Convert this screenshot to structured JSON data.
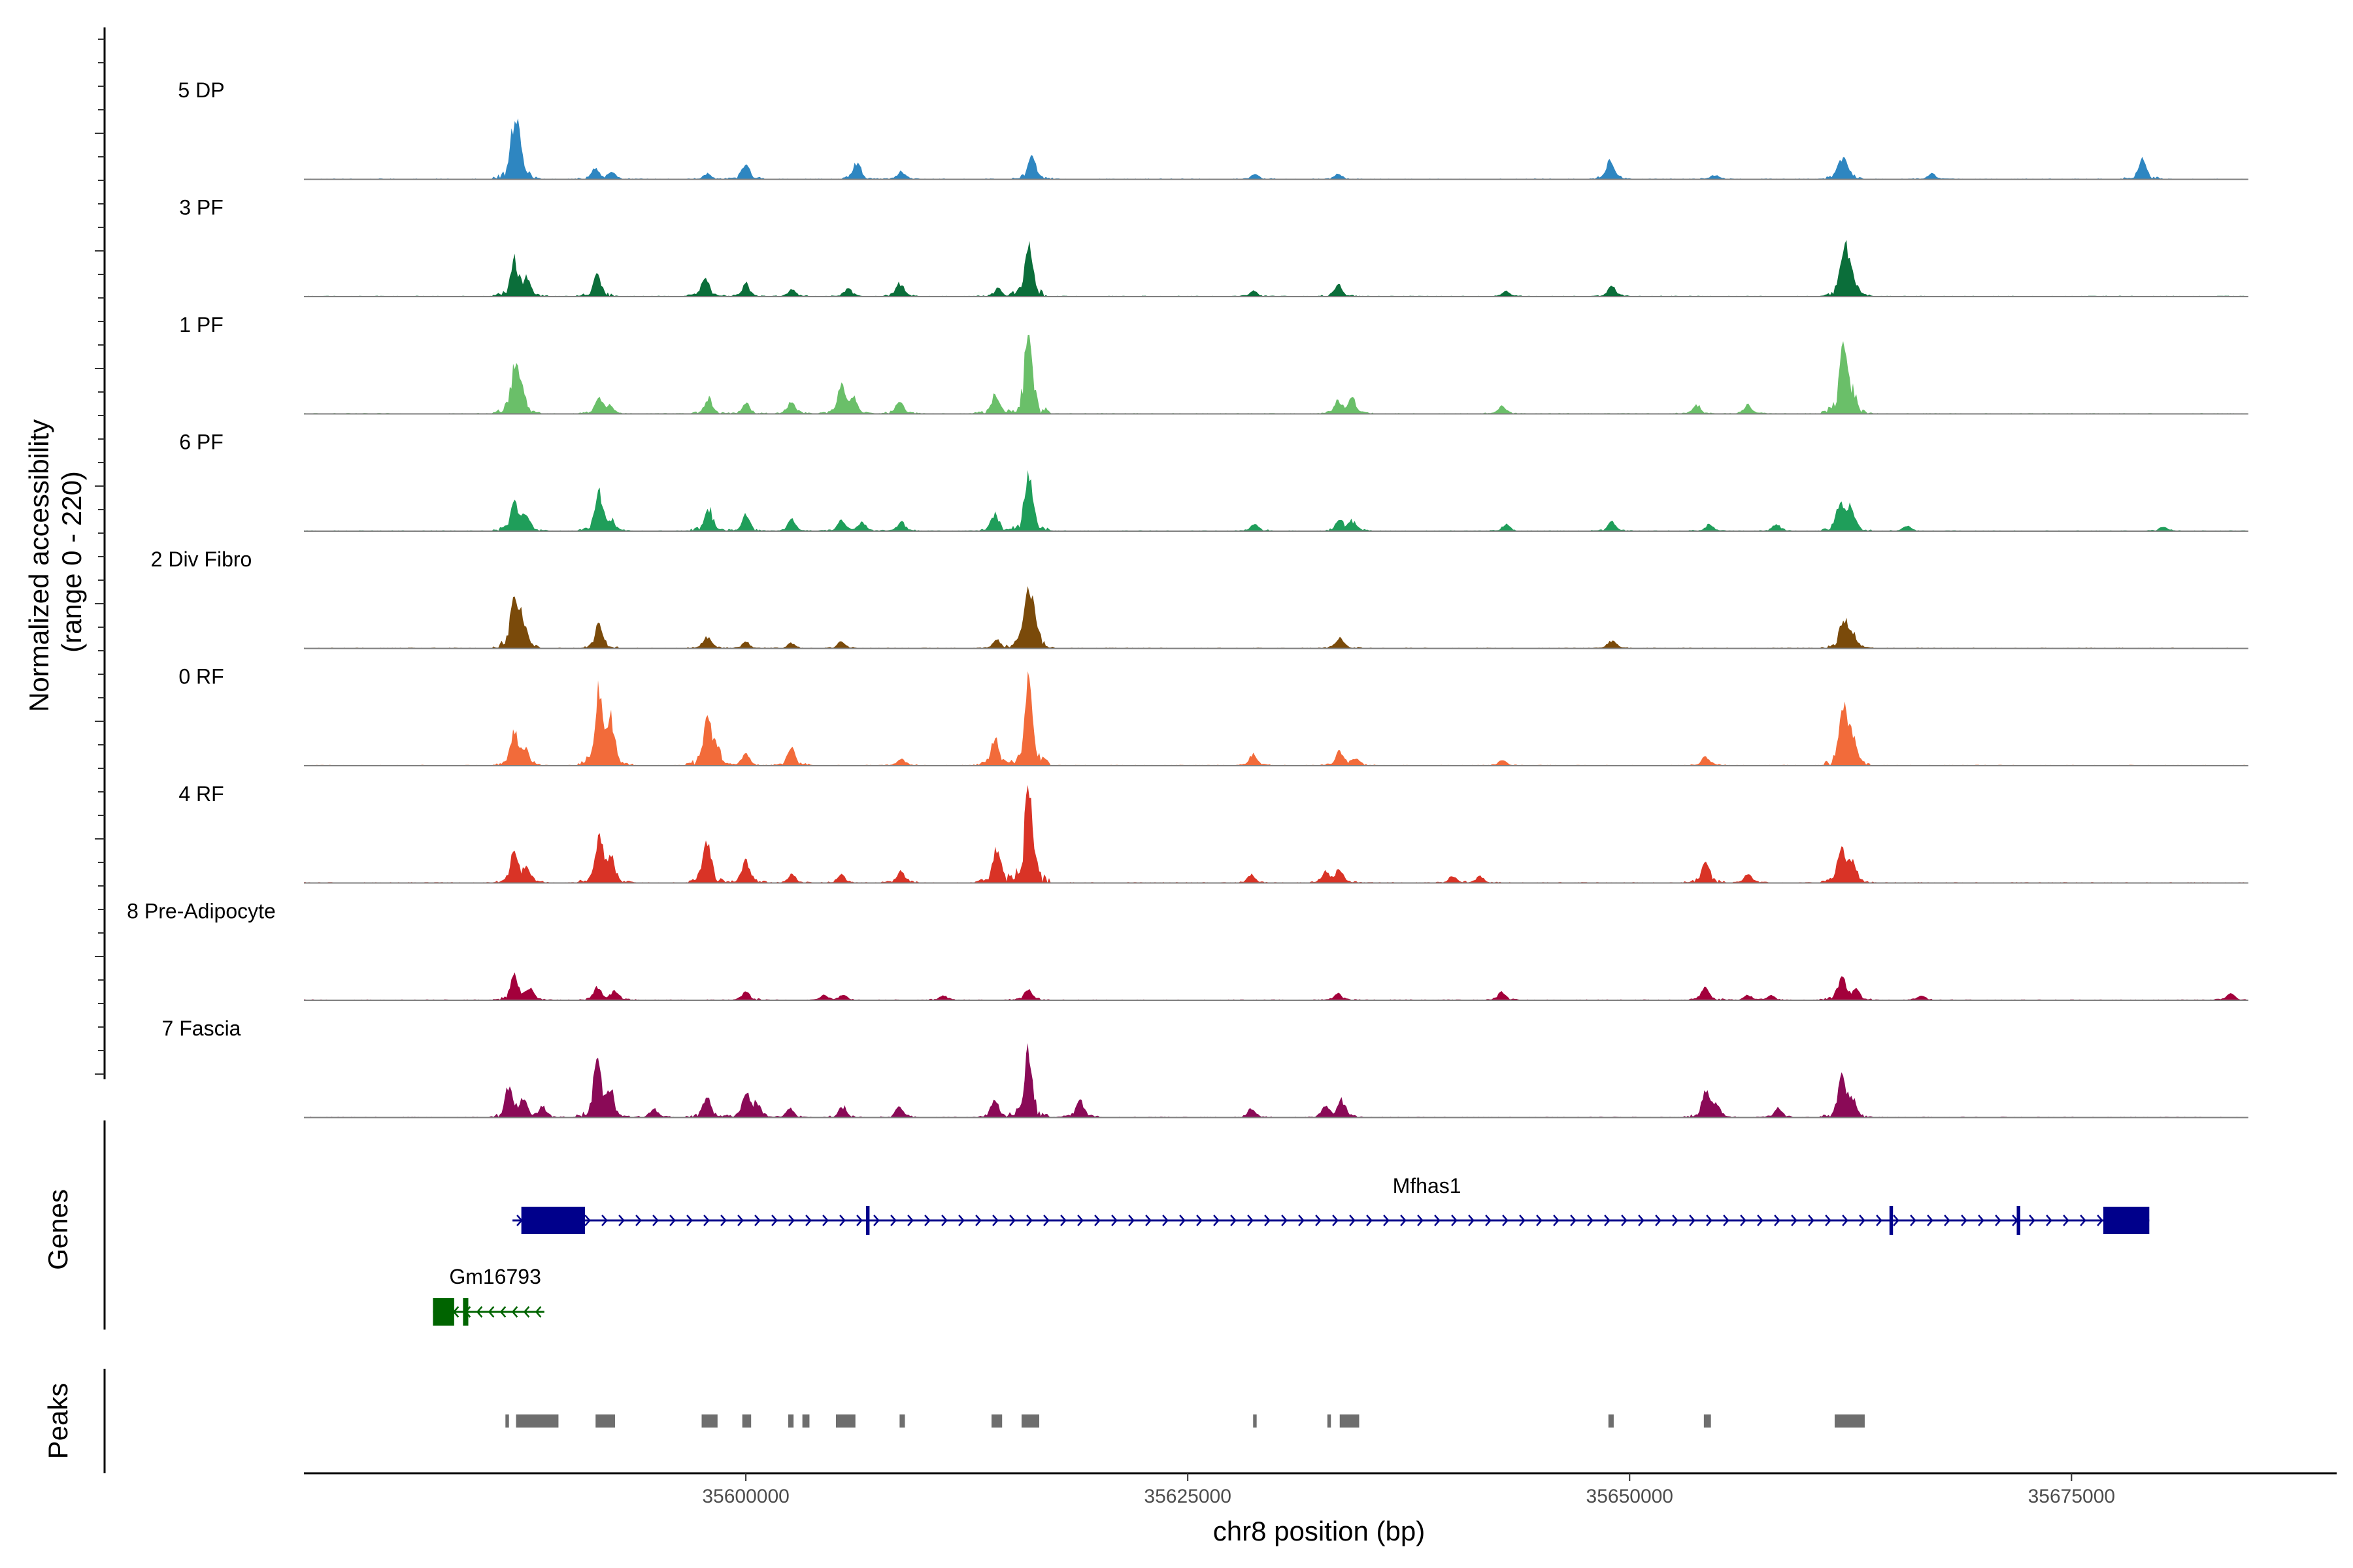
{
  "chart_data": {
    "type": "area",
    "title": "",
    "ylabel": "Normalized accessibility\n(range 0 - 220)",
    "ylabel_lines": [
      "Normalized accessibility",
      "(range 0 - 220)"
    ],
    "xlabel": "chr8 position (bp)",
    "ylim": [
      0,
      220
    ],
    "xlim": [
      35575000,
      35690000
    ],
    "x_ticks": [
      35600000,
      35625000,
      35650000,
      35675000
    ],
    "x_tick_labels": [
      "35600000",
      "35625000",
      "35650000",
      "35675000"
    ],
    "data_start": 35575000,
    "data_end": 35685000,
    "panel_labels": {
      "genes": "Genes",
      "peaks": "Peaks"
    },
    "tracks": [
      {
        "name": "5 DP",
        "color": "#2e86c1",
        "peaks": [
          [
            35586900,
            110
          ],
          [
            35587200,
            55
          ],
          [
            35591500,
            25
          ],
          [
            35592400,
            15
          ],
          [
            35597800,
            12
          ],
          [
            35600000,
            35
          ],
          [
            35606300,
            38
          ],
          [
            35608800,
            18
          ],
          [
            35616200,
            60
          ],
          [
            35628800,
            12
          ],
          [
            35633500,
            12
          ],
          [
            35648900,
            45
          ],
          [
            35654800,
            10
          ],
          [
            35661900,
            28
          ],
          [
            35662200,
            40
          ],
          [
            35667100,
            12
          ],
          [
            35679000,
            45
          ]
        ]
      },
      {
        "name": "3 PF",
        "color": "#0b6e3a",
        "peaks": [
          [
            35586900,
            80
          ],
          [
            35587600,
            40
          ],
          [
            35591600,
            52
          ],
          [
            35597700,
            45
          ],
          [
            35600000,
            28
          ],
          [
            35602600,
            15
          ],
          [
            35605800,
            20
          ],
          [
            35608700,
            30
          ],
          [
            35614300,
            18
          ],
          [
            35616000,
            115
          ],
          [
            35628700,
            12
          ],
          [
            35633500,
            25
          ],
          [
            35643000,
            12
          ],
          [
            35649000,
            25
          ],
          [
            35662100,
            100
          ],
          [
            35662500,
            60
          ]
        ]
      },
      {
        "name": "1 PF",
        "color": "#6abf69",
        "peaks": [
          [
            35586900,
            100
          ],
          [
            35587300,
            55
          ],
          [
            35591700,
            35
          ],
          [
            35592300,
            15
          ],
          [
            35597900,
            35
          ],
          [
            35600000,
            25
          ],
          [
            35602600,
            28
          ],
          [
            35605400,
            65
          ],
          [
            35606100,
            30
          ],
          [
            35608700,
            30
          ],
          [
            35614100,
            45
          ],
          [
            35616000,
            200
          ],
          [
            35633500,
            28
          ],
          [
            35634300,
            35
          ],
          [
            35642800,
            18
          ],
          [
            35653800,
            20
          ],
          [
            35656700,
            20
          ],
          [
            35662100,
            155
          ],
          [
            35662600,
            45
          ]
        ]
      },
      {
        "name": "6 PF",
        "color": "#1f9e5a",
        "peaks": [
          [
            35586900,
            70
          ],
          [
            35587600,
            35
          ],
          [
            35591700,
            85
          ],
          [
            35592400,
            20
          ],
          [
            35597900,
            55
          ],
          [
            35600000,
            35
          ],
          [
            35602600,
            25
          ],
          [
            35605400,
            25
          ],
          [
            35606600,
            20
          ],
          [
            35608800,
            20
          ],
          [
            35614100,
            40
          ],
          [
            35616000,
            140
          ],
          [
            35628800,
            18
          ],
          [
            35633600,
            25
          ],
          [
            35634300,
            22
          ],
          [
            35643000,
            15
          ],
          [
            35649000,
            20
          ],
          [
            35654500,
            15
          ],
          [
            35658300,
            15
          ],
          [
            35661900,
            60
          ],
          [
            35662500,
            55
          ],
          [
            35665700,
            12
          ],
          [
            35680200,
            10
          ]
        ]
      },
      {
        "name": "2 Div Fibro",
        "color": "#7a4a0a",
        "peaks": [
          [
            35586900,
            120
          ],
          [
            35587400,
            60
          ],
          [
            35591700,
            55
          ],
          [
            35597800,
            28
          ],
          [
            35600000,
            15
          ],
          [
            35602600,
            12
          ],
          [
            35605400,
            15
          ],
          [
            35614200,
            18
          ],
          [
            35615900,
            115
          ],
          [
            35616300,
            80
          ],
          [
            35633600,
            25
          ],
          [
            35649000,
            18
          ],
          [
            35662100,
            65
          ],
          [
            35662600,
            30
          ]
        ]
      },
      {
        "name": "0 RF",
        "color": "#f26b3a",
        "peaks": [
          [
            35586900,
            80
          ],
          [
            35587500,
            35
          ],
          [
            35591700,
            170
          ],
          [
            35592400,
            95
          ],
          [
            35597800,
            110
          ],
          [
            35598300,
            40
          ],
          [
            35600000,
            28
          ],
          [
            35602600,
            40
          ],
          [
            35608800,
            15
          ],
          [
            35614100,
            65
          ],
          [
            35616000,
            195
          ],
          [
            35628700,
            25
          ],
          [
            35633600,
            35
          ],
          [
            35634500,
            15
          ],
          [
            35642800,
            12
          ],
          [
            35654300,
            20
          ],
          [
            35662100,
            145
          ],
          [
            35662600,
            55
          ]
        ]
      },
      {
        "name": "4 RF",
        "color": "#d93326",
        "peaks": [
          [
            35586900,
            70
          ],
          [
            35587600,
            35
          ],
          [
            35591700,
            115
          ],
          [
            35592400,
            50
          ],
          [
            35597800,
            100
          ],
          [
            35600000,
            55
          ],
          [
            35602600,
            20
          ],
          [
            35605400,
            18
          ],
          [
            35608800,
            28
          ],
          [
            35614200,
            85
          ],
          [
            35616000,
            230
          ],
          [
            35628600,
            18
          ],
          [
            35632800,
            25
          ],
          [
            35633600,
            30
          ],
          [
            35640000,
            15
          ],
          [
            35641500,
            15
          ],
          [
            35654300,
            50
          ],
          [
            35656700,
            20
          ],
          [
            35662000,
            80
          ],
          [
            35662600,
            45
          ]
        ]
      },
      {
        "name": "8 Pre-Adipocyte",
        "color": "#a3003b",
        "peaks": [
          [
            35586900,
            55
          ],
          [
            35587800,
            25
          ],
          [
            35591600,
            30
          ],
          [
            35592600,
            20
          ],
          [
            35600000,
            20
          ],
          [
            35604400,
            10
          ],
          [
            35605500,
            12
          ],
          [
            35611200,
            10
          ],
          [
            35616000,
            25
          ],
          [
            35633500,
            15
          ],
          [
            35642800,
            18
          ],
          [
            35654300,
            30
          ],
          [
            35656700,
            12
          ],
          [
            35658000,
            10
          ],
          [
            35662000,
            55
          ],
          [
            35662800,
            22
          ],
          [
            35666500,
            10
          ],
          [
            35684000,
            15
          ]
        ]
      },
      {
        "name": "7 Fascia",
        "color": "#8a0a57",
        "peaks": [
          [
            35586600,
            70
          ],
          [
            35587400,
            45
          ],
          [
            35588500,
            25
          ],
          [
            35591600,
            135
          ],
          [
            35592300,
            60
          ],
          [
            35594800,
            20
          ],
          [
            35597800,
            50
          ],
          [
            35600000,
            55
          ],
          [
            35600600,
            30
          ],
          [
            35602500,
            20
          ],
          [
            35605500,
            25
          ],
          [
            35608700,
            25
          ],
          [
            35614100,
            40
          ],
          [
            35616000,
            150
          ],
          [
            35618900,
            40
          ],
          [
            35628600,
            20
          ],
          [
            35632800,
            25
          ],
          [
            35633700,
            40
          ],
          [
            35654300,
            60
          ],
          [
            35654900,
            25
          ],
          [
            35658400,
            20
          ],
          [
            35662000,
            95
          ],
          [
            35662600,
            35
          ]
        ]
      }
    ],
    "genes": [
      {
        "name": "Mfhas1",
        "color": "#00008b",
        "strand": "+",
        "start": 35586800,
        "end": 35679400,
        "exons": [
          [
            35587300,
            35590900
          ],
          [
            35676800,
            35679400
          ],
          [
            35606800,
            35607000
          ],
          [
            35664700,
            35664900
          ],
          [
            35671900,
            35672100
          ]
        ]
      },
      {
        "name": "Gm16793",
        "color": "#006400",
        "strand": "-",
        "start": 35582300,
        "end": 35588600,
        "exons": [
          [
            35582300,
            35583500
          ],
          [
            35584000,
            35584300
          ]
        ]
      }
    ],
    "peak_regions": [
      [
        35586400,
        35586600
      ],
      [
        35587000,
        35589400
      ],
      [
        35591500,
        35592600
      ],
      [
        35597500,
        35598400
      ],
      [
        35599800,
        35600300
      ],
      [
        35602400,
        35602700
      ],
      [
        35603200,
        35603600
      ],
      [
        35605100,
        35606200
      ],
      [
        35608700,
        35609000
      ],
      [
        35613900,
        35614500
      ],
      [
        35615600,
        35616600
      ],
      [
        35628700,
        35628900
      ],
      [
        35632900,
        35633100
      ],
      [
        35633600,
        35634700
      ],
      [
        35648800,
        35649100
      ],
      [
        35654200,
        35654600
      ],
      [
        35661600,
        35663300
      ]
    ]
  }
}
